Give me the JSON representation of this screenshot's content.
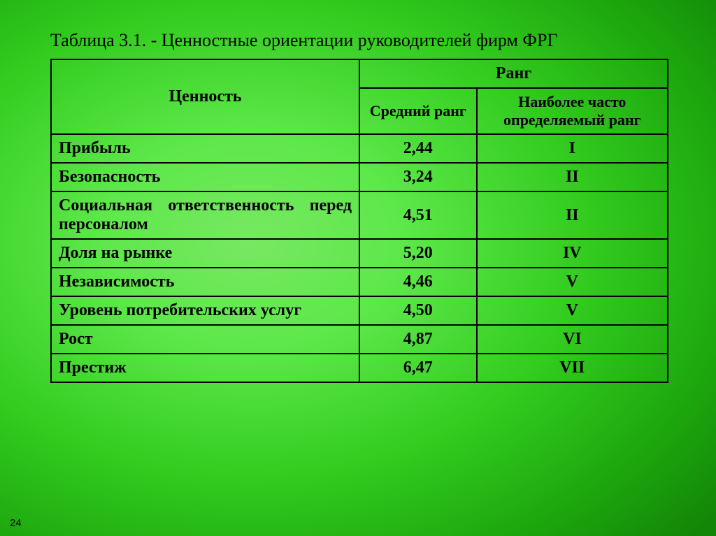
{
  "caption": "Таблица 3.1. - Ценностные ориентации руководителей фирм ФРГ",
  "headers": {
    "value": "Ценность",
    "rank": "Ранг",
    "avg_rank": "Средний ранг",
    "mode_rank": "Наиболее часто определяемый ранг"
  },
  "col_widths": {
    "value_pct": 50,
    "avg_pct": 19,
    "mode_pct": 31
  },
  "rows": [
    {
      "value_line1": "Прибыль",
      "avg": "2,44",
      "rank": "I",
      "justify": false
    },
    {
      "value_line1": "Безопасность",
      "avg": "3,24",
      "rank": "II",
      "justify": false
    },
    {
      "value_line1": "Социальная ответственность перед",
      "value_line2": "персоналом",
      "avg": "4,51",
      "rank": "II",
      "justify": true
    },
    {
      "value_line1": "Доля на рынке",
      "avg": "5,20",
      "rank": "IV",
      "justify": false
    },
    {
      "value_line1": "Независимость",
      "avg": "4,46",
      "rank": "V",
      "justify": false
    },
    {
      "value_line1": "Уровень потребительских услуг",
      "avg": "4,50",
      "rank": "V",
      "justify": false
    },
    {
      "value_line1": "Рост",
      "avg": "4,87",
      "rank": "VI",
      "justify": false
    },
    {
      "value_line1": "Престиж",
      "avg": "6,47",
      "rank": "VII",
      "justify": false
    }
  ],
  "page_number": "24",
  "colors": {
    "border": "#000000",
    "text": "#000000"
  },
  "fonts": {
    "caption_pt": 26,
    "header_pt": 24,
    "subheader_pt": 22,
    "cell_pt": 24
  }
}
